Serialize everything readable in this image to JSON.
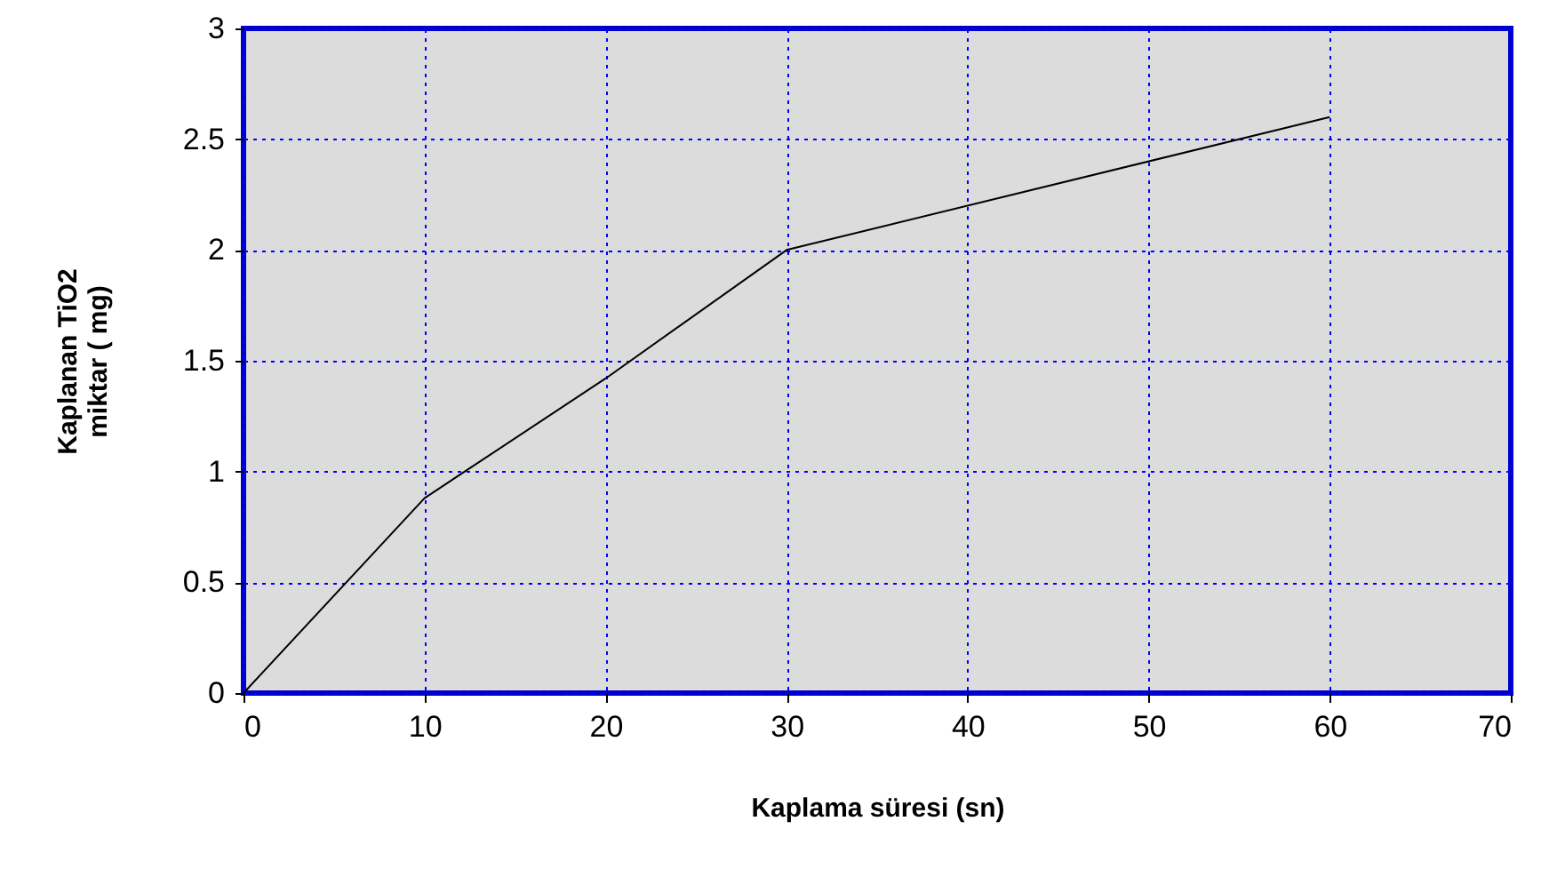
{
  "chart_data": {
    "type": "line",
    "xlabel": "Kaplama süresi (sn)",
    "ylabel": "Kaplanan TiO2\nmiktar ( mg)",
    "x": [
      0,
      10,
      20,
      30,
      60
    ],
    "series": [
      {
        "color": "#000000",
        "values": [
          0,
          0.88,
          1.42,
          2.0,
          2.6
        ]
      }
    ],
    "xlim": [
      0,
      70
    ],
    "xticks": [
      0,
      10,
      20,
      30,
      40,
      50,
      60,
      70
    ],
    "ylim": [
      0,
      3
    ],
    "yticks": [
      0,
      0.5,
      1,
      1.5,
      2,
      2.5,
      3
    ],
    "grid": true,
    "marker": "none",
    "line_style": "solid"
  }
}
